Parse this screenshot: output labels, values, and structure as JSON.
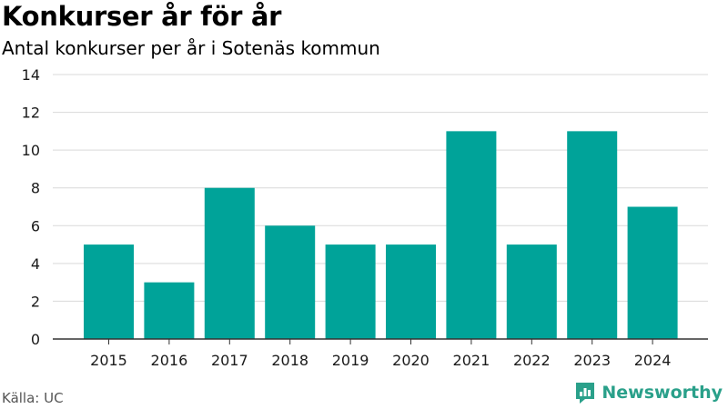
{
  "header": {
    "title": "Konkurser år för år",
    "subtitle": "Antal konkurser per år i Sotenäs kommun"
  },
  "footer": {
    "source": "Källa: UC",
    "brand": "Newsworthy"
  },
  "colors": {
    "bar": "#00a399",
    "grid": "#d9d9d9",
    "axis": "#333333",
    "brand": "#2aa08a"
  },
  "chart_data": {
    "type": "bar",
    "categories": [
      "2015",
      "2016",
      "2017",
      "2018",
      "2019",
      "2020",
      "2021",
      "2022",
      "2023",
      "2024"
    ],
    "values": [
      5,
      3,
      8,
      6,
      5,
      5,
      11,
      5,
      11,
      7
    ],
    "ylim": [
      0,
      14
    ],
    "yticks": [
      0,
      2,
      4,
      6,
      8,
      10,
      12,
      14
    ],
    "grid": true,
    "legend": "none"
  }
}
